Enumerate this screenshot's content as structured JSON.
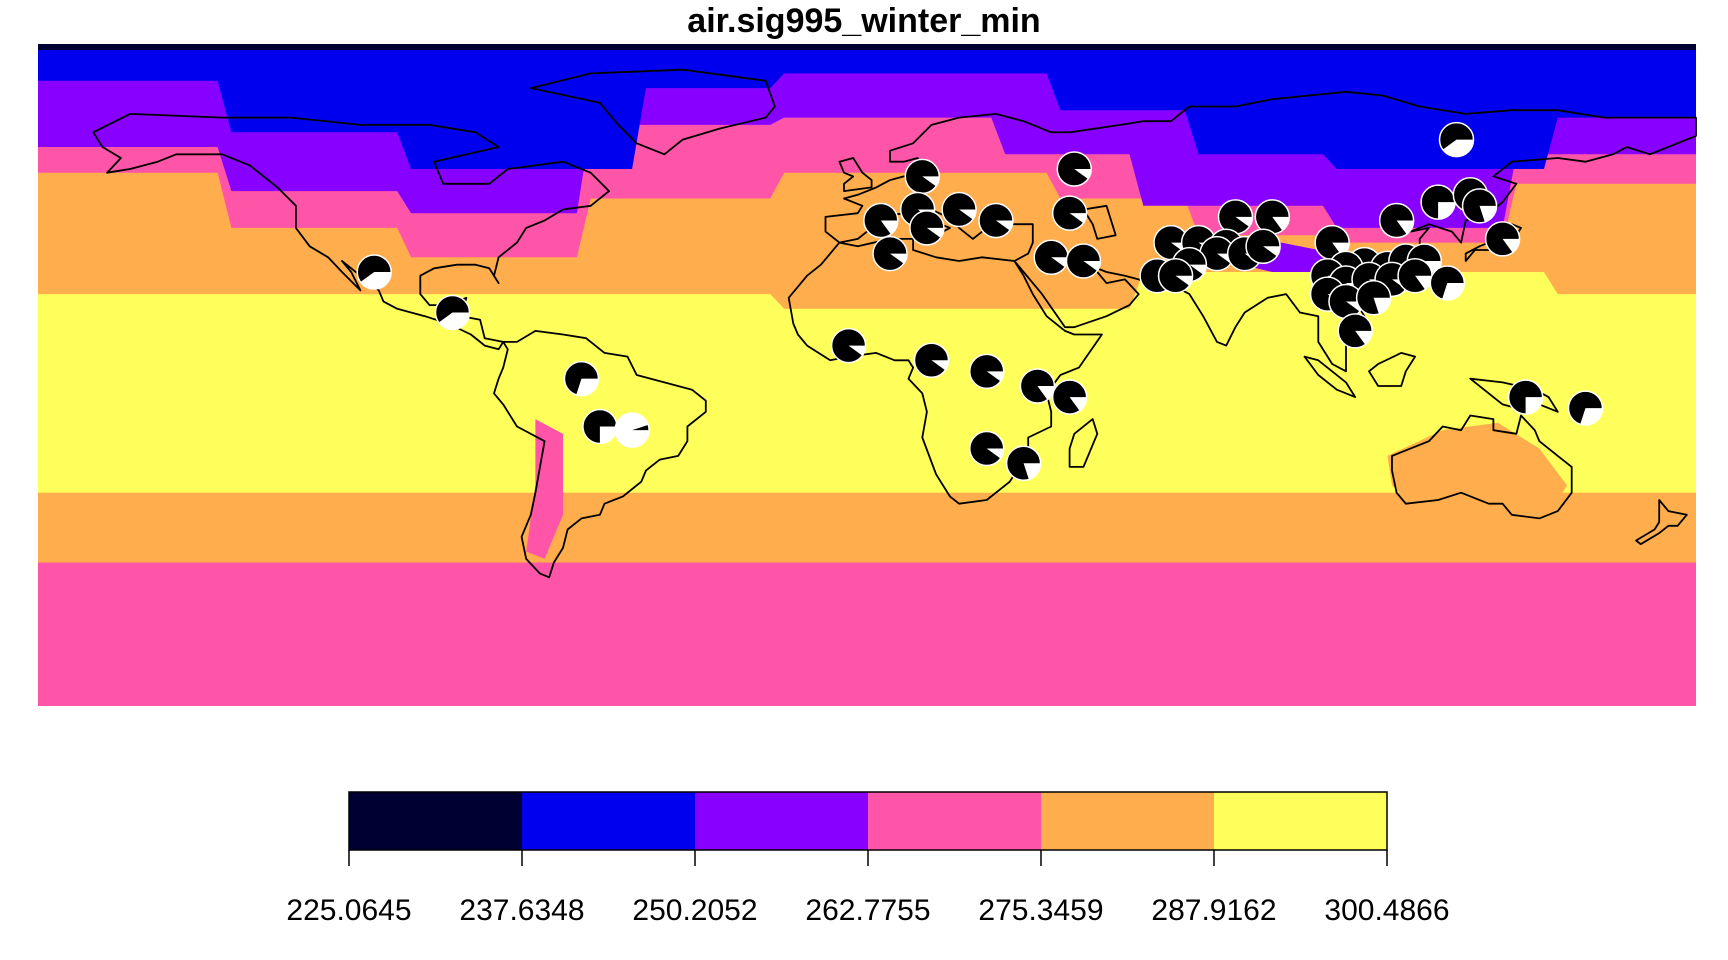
{
  "title": "air.sig995_winter_min",
  "palette": [
    "#000033",
    "#0000ee",
    "#8800ff",
    "#ff55a8",
    "#ffad4d",
    "#ffff5b"
  ],
  "legend": {
    "breaks": [
      "225.0645",
      "237.6348",
      "250.2052",
      "262.7755",
      "275.3459",
      "287.9162",
      "300.4866"
    ]
  },
  "chart_data": {
    "type": "map",
    "projection": "equirectangular",
    "lon_range": [
      -180,
      180
    ],
    "lat_range": [
      -90,
      90
    ],
    "variable": "air.sig995_winter_min",
    "pie_markers": [
      {
        "lon": 12,
        "lat": 54,
        "black": 0.9
      },
      {
        "lon": 45,
        "lat": 56,
        "black": 0.9
      },
      {
        "lon": 3,
        "lat": 42,
        "black": 0.85
      },
      {
        "lon": 11,
        "lat": 45,
        "black": 0.9
      },
      {
        "lon": 20,
        "lat": 45,
        "black": 0.9
      },
      {
        "lon": 28,
        "lat": 42,
        "black": 0.9
      },
      {
        "lon": 44,
        "lat": 44,
        "black": 0.9
      },
      {
        "lon": 13,
        "lat": 40,
        "black": 0.9
      },
      {
        "lon": 5,
        "lat": 33,
        "black": 0.9
      },
      {
        "lon": 40,
        "lat": 32,
        "black": 0.9
      },
      {
        "lon": 47,
        "lat": 31,
        "black": 0.9
      },
      {
        "lon": -107,
        "lat": 28,
        "black": 0.6
      },
      {
        "lon": -90,
        "lat": 17,
        "black": 0.6
      },
      {
        "lon": -62,
        "lat": -1,
        "black": 0.7
      },
      {
        "lon": -58,
        "lat": -14,
        "black": 0.75
      },
      {
        "lon": -51,
        "lat": -15,
        "black": 0.05
      },
      {
        "lon": -4,
        "lat": 8,
        "black": 0.9
      },
      {
        "lon": 14,
        "lat": 4,
        "black": 0.9
      },
      {
        "lon": 26,
        "lat": 1,
        "black": 0.9
      },
      {
        "lon": 37,
        "lat": -3,
        "black": 0.85
      },
      {
        "lon": 44,
        "lat": -6,
        "black": 0.85
      },
      {
        "lon": 26,
        "lat": -20,
        "black": 0.9
      },
      {
        "lon": 34,
        "lat": -24,
        "black": 0.8
      },
      {
        "lon": 80,
        "lat": 43,
        "black": 0.9
      },
      {
        "lon": 88,
        "lat": 43,
        "black": 0.85
      },
      {
        "lon": 66,
        "lat": 36,
        "black": 0.9
      },
      {
        "lon": 72,
        "lat": 36,
        "black": 0.9
      },
      {
        "lon": 78,
        "lat": 35,
        "black": 0.9
      },
      {
        "lon": 76,
        "lat": 33,
        "black": 0.9
      },
      {
        "lon": 82,
        "lat": 33,
        "black": 0.9
      },
      {
        "lon": 86,
        "lat": 35,
        "black": 0.9
      },
      {
        "lon": 70,
        "lat": 30,
        "black": 0.9
      },
      {
        "lon": 63,
        "lat": 27,
        "black": 0.9
      },
      {
        "lon": 67,
        "lat": 27,
        "black": 0.9
      },
      {
        "lon": 101,
        "lat": 36,
        "black": 0.85
      },
      {
        "lon": 115,
        "lat": 42,
        "black": 0.85
      },
      {
        "lon": 128,
        "lat": 64,
        "black": 0.6
      },
      {
        "lon": 124,
        "lat": 47,
        "black": 0.75
      },
      {
        "lon": 131,
        "lat": 49,
        "black": 0.8
      },
      {
        "lon": 133,
        "lat": 46,
        "black": 0.8
      },
      {
        "lon": 138,
        "lat": 37,
        "black": 0.85
      },
      {
        "lon": 108,
        "lat": 30,
        "black": 0.85
      },
      {
        "lon": 113,
        "lat": 29,
        "black": 0.85
      },
      {
        "lon": 117,
        "lat": 31,
        "black": 0.85
      },
      {
        "lon": 121,
        "lat": 31,
        "black": 0.85
      },
      {
        "lon": 104,
        "lat": 29,
        "black": 0.9
      },
      {
        "lon": 100,
        "lat": 27,
        "black": 0.9
      },
      {
        "lon": 104,
        "lat": 25,
        "black": 0.9
      },
      {
        "lon": 109,
        "lat": 26,
        "black": 0.9
      },
      {
        "lon": 114,
        "lat": 26,
        "black": 0.9
      },
      {
        "lon": 119,
        "lat": 27,
        "black": 0.85
      },
      {
        "lon": 126,
        "lat": 25,
        "black": 0.7
      },
      {
        "lon": 100,
        "lat": 22,
        "black": 0.9
      },
      {
        "lon": 104,
        "lat": 20,
        "black": 0.9
      },
      {
        "lon": 110,
        "lat": 21,
        "black": 0.8
      },
      {
        "lon": 106,
        "lat": 12,
        "black": 0.85
      },
      {
        "lon": 143,
        "lat": -6,
        "black": 0.75
      },
      {
        "lon": 156,
        "lat": -9,
        "black": 0.7
      }
    ]
  }
}
